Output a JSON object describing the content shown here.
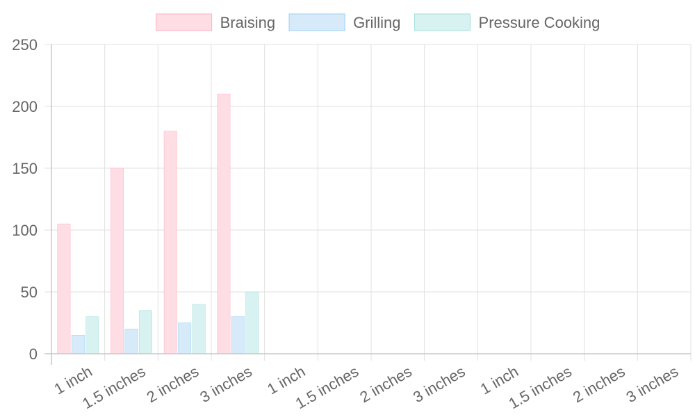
{
  "chart_data": {
    "type": "bar",
    "categories": [
      "1 inch",
      "1.5 inches",
      "2 inches",
      "3 inches",
      "1 inch",
      "1.5 inches",
      "2 inches",
      "3 inches",
      "1 inch",
      "1.5 inches",
      "2 inches",
      "3 inches"
    ],
    "series": [
      {
        "name": "Braising",
        "values": [
          105,
          150,
          180,
          210,
          null,
          null,
          null,
          null,
          null,
          null,
          null,
          null
        ],
        "fill": "#ffdde4",
        "stroke": "#ffb1c1"
      },
      {
        "name": "Grilling",
        "values": [
          15,
          20,
          25,
          30,
          null,
          null,
          null,
          null,
          null,
          null,
          null,
          null
        ],
        "fill": "#d6eaf9",
        "stroke": "#9ad0f5"
      },
      {
        "name": "Pressure Cooking",
        "values": [
          30,
          35,
          40,
          50,
          null,
          null,
          null,
          null,
          null,
          null,
          null,
          null
        ],
        "fill": "#d8f1f1",
        "stroke": "#a5dfdf"
      }
    ],
    "y_ticks": [
      0,
      50,
      100,
      150,
      200,
      250
    ],
    "ylim": [
      0,
      250
    ],
    "title": "",
    "xlabel": "",
    "ylabel": "",
    "grid": true,
    "legend_position": "top"
  }
}
